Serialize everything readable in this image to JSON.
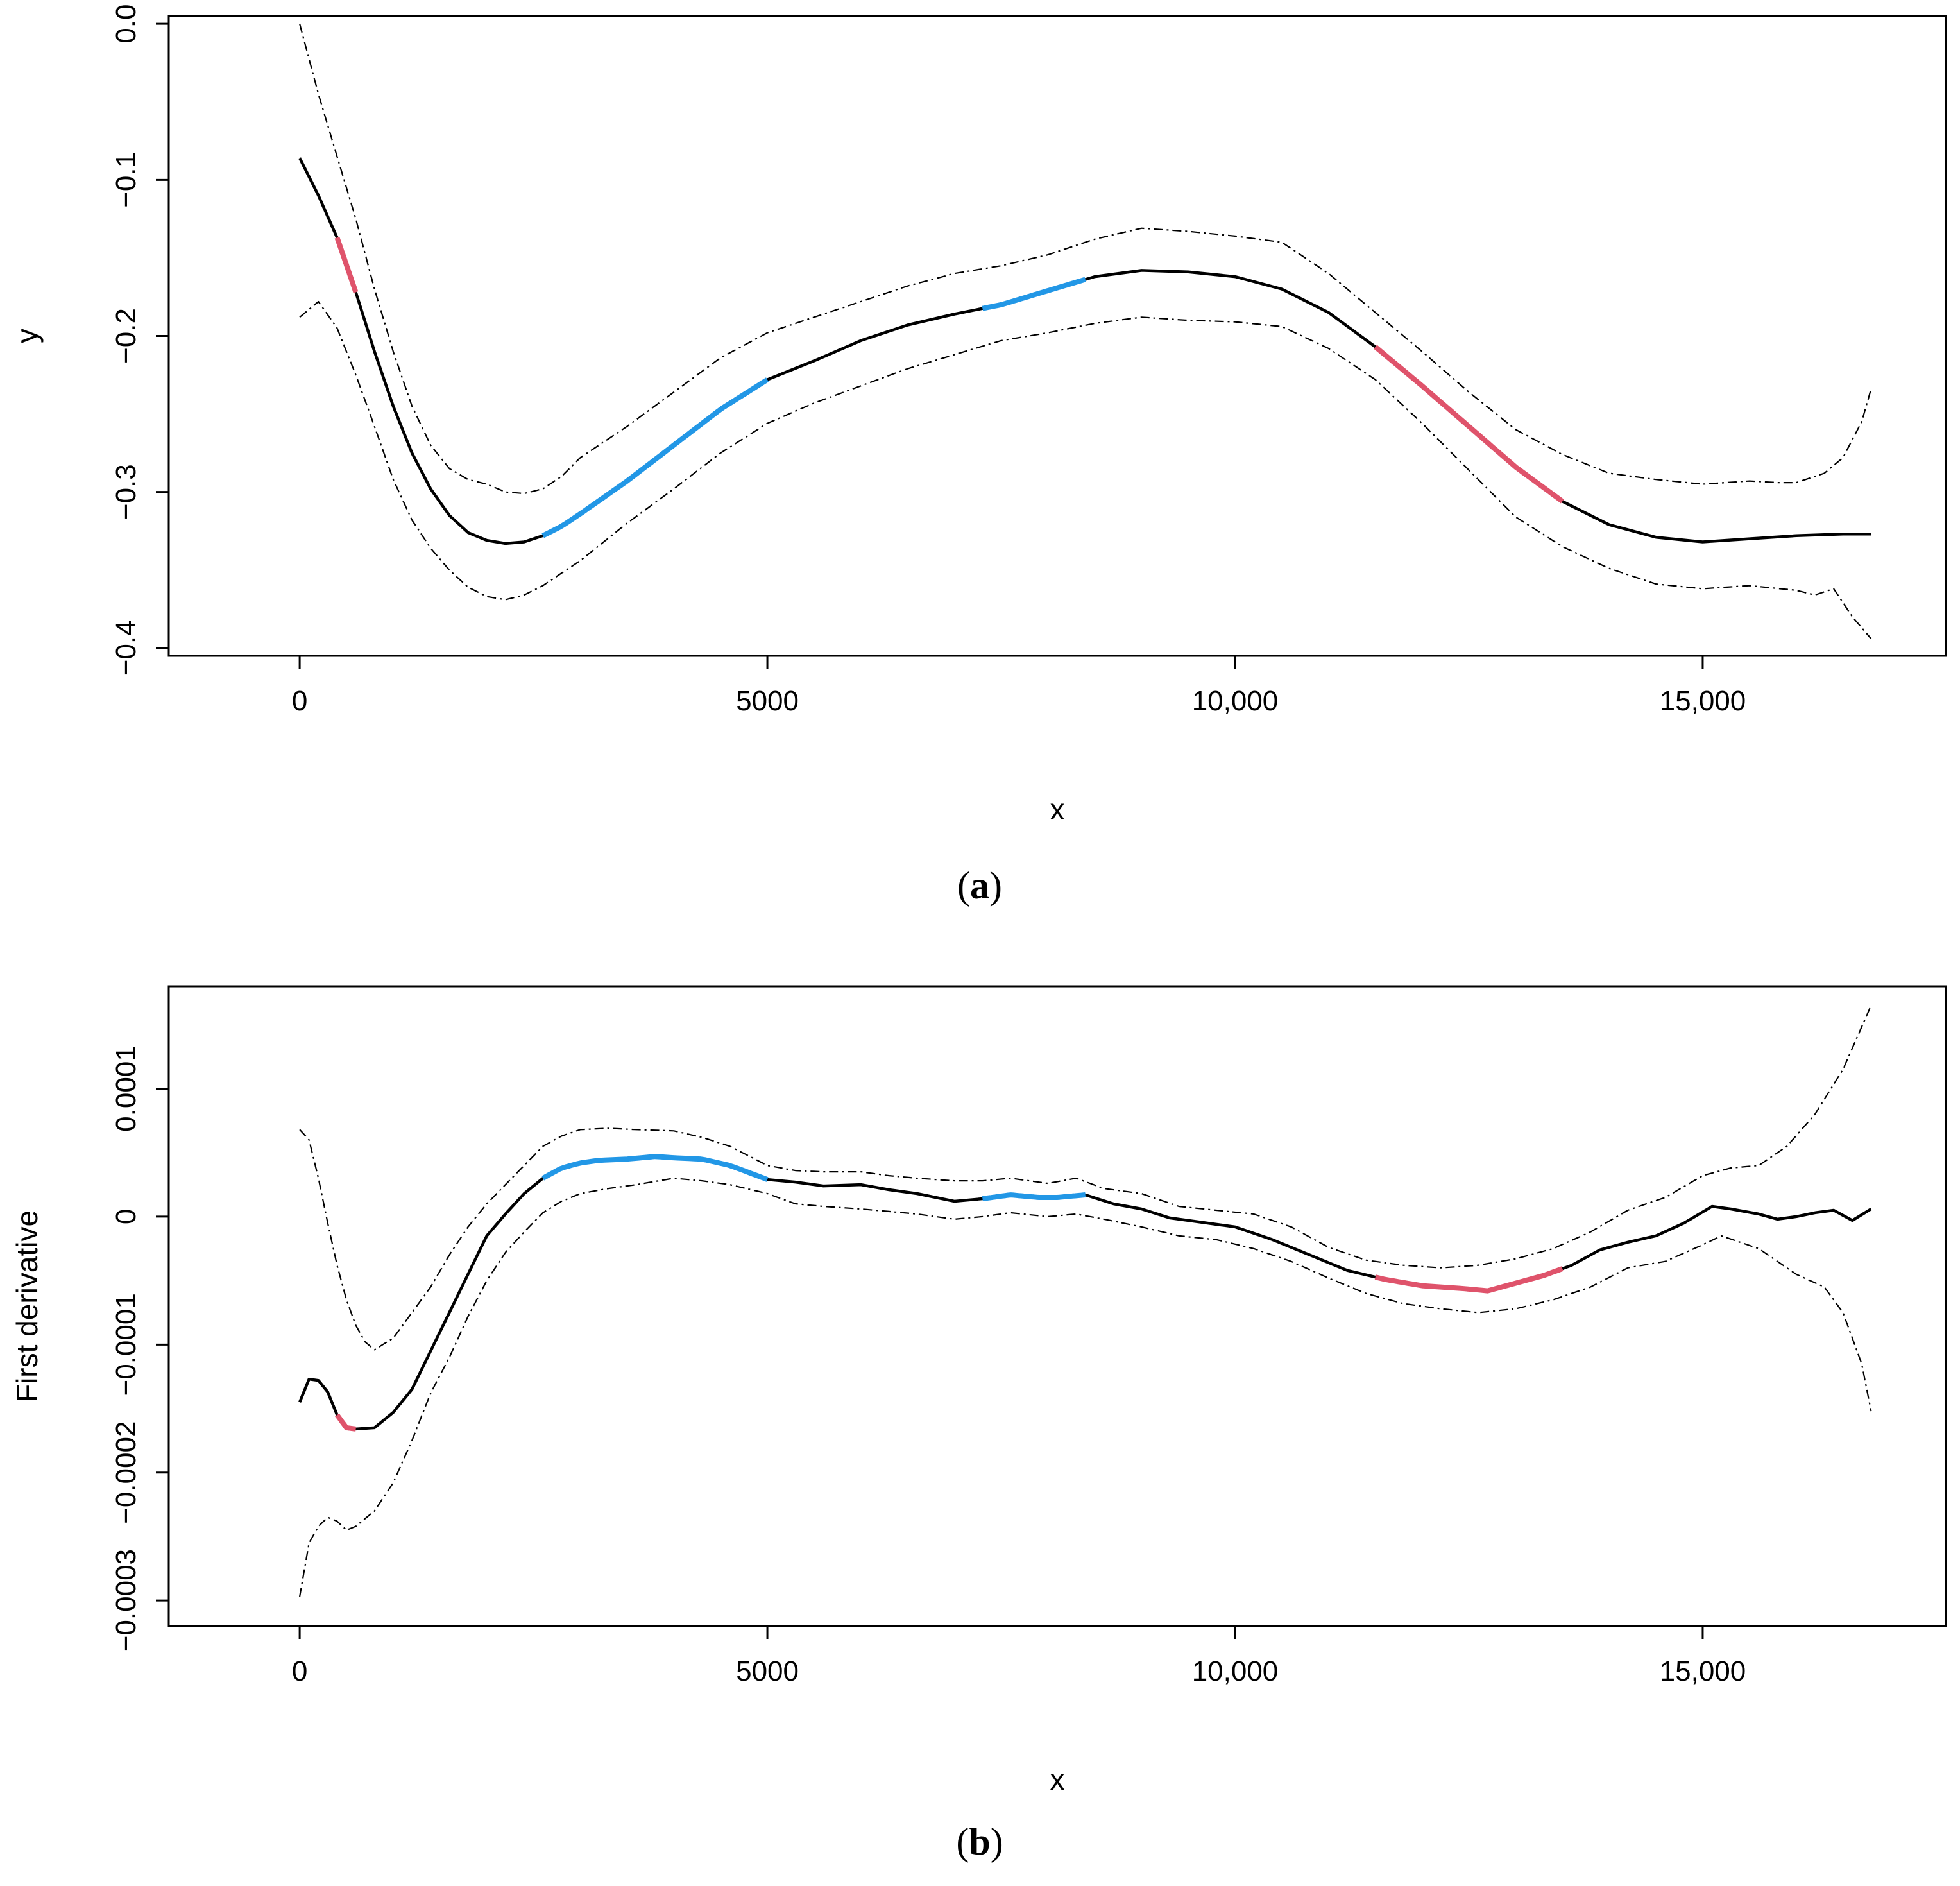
{
  "chart_data": [
    {
      "type": "line",
      "caption_letter": "a",
      "xlabel": "x",
      "ylabel": "y",
      "xlim": [
        -1400,
        17600
      ],
      "ylim": [
        -0.405,
        0.005
      ],
      "xticks": [
        0,
        5000,
        10000,
        15000
      ],
      "xtick_labels": [
        "0",
        "5000",
        "10,000",
        "15,000"
      ],
      "yticks": [
        0.0,
        -0.1,
        -0.2,
        -0.3,
        -0.4
      ],
      "ytick_labels": [
        "0.0",
        "−0.1",
        "−0.2",
        "−0.3",
        "−0.4"
      ],
      "colors": {
        "estimate": "#000000",
        "bands": "#000000",
        "decreasing": "#DF536B",
        "increasing": "#2297E6"
      },
      "series": [
        {
          "name": "estimate",
          "style": "solid",
          "x": [
            0,
            200,
            400,
            600,
            800,
            1000,
            1200,
            1400,
            1600,
            1800,
            2000,
            2200,
            2400,
            2600,
            2800,
            3000,
            3500,
            4000,
            4500,
            5000,
            5500,
            6000,
            6500,
            7000,
            7500,
            8000,
            8500,
            9000,
            9500,
            10000,
            10500,
            11000,
            11500,
            12000,
            12500,
            13000,
            13500,
            14000,
            14500,
            15000,
            15500,
            16000,
            16500,
            16800
          ],
          "y": [
            -0.086,
            -0.11,
            -0.137,
            -0.172,
            -0.21,
            -0.245,
            -0.275,
            -0.298,
            -0.315,
            -0.326,
            -0.331,
            -0.333,
            -0.332,
            -0.328,
            -0.322,
            -0.314,
            -0.293,
            -0.27,
            -0.247,
            -0.228,
            -0.216,
            -0.203,
            -0.193,
            -0.186,
            -0.18,
            -0.171,
            -0.162,
            -0.158,
            -0.159,
            -0.162,
            -0.17,
            -0.185,
            -0.207,
            -0.232,
            -0.258,
            -0.284,
            -0.306,
            -0.321,
            -0.329,
            -0.332,
            -0.33,
            -0.328,
            -0.327,
            -0.327
          ]
        },
        {
          "name": "upper band",
          "style": "dashdot",
          "x": [
            0,
            200,
            400,
            600,
            800,
            1000,
            1200,
            1400,
            1600,
            1800,
            2000,
            2200,
            2400,
            2600,
            2800,
            3000,
            3500,
            4000,
            4500,
            5000,
            5500,
            6000,
            6500,
            7000,
            7500,
            8000,
            8500,
            9000,
            9500,
            10000,
            10500,
            11000,
            11500,
            12000,
            12500,
            13000,
            13500,
            14000,
            14500,
            15000,
            15500,
            15800,
            16000,
            16300,
            16500,
            16700,
            16800
          ],
          "y": [
            0.0,
            -0.045,
            -0.085,
            -0.125,
            -0.17,
            -0.21,
            -0.245,
            -0.27,
            -0.285,
            -0.292,
            -0.295,
            -0.3,
            -0.301,
            -0.298,
            -0.29,
            -0.278,
            -0.258,
            -0.236,
            -0.214,
            -0.198,
            -0.188,
            -0.178,
            -0.168,
            -0.16,
            -0.155,
            -0.148,
            -0.138,
            -0.131,
            -0.133,
            -0.136,
            -0.14,
            -0.16,
            -0.185,
            -0.21,
            -0.236,
            -0.26,
            -0.276,
            -0.288,
            -0.292,
            -0.295,
            -0.293,
            -0.294,
            -0.294,
            -0.288,
            -0.278,
            -0.255,
            -0.234
          ]
        },
        {
          "name": "lower band",
          "style": "dashdot",
          "x": [
            0,
            200,
            400,
            600,
            800,
            1000,
            1200,
            1400,
            1600,
            1800,
            2000,
            2200,
            2400,
            2600,
            2800,
            3000,
            3500,
            4000,
            4500,
            5000,
            5500,
            6000,
            6500,
            7000,
            7500,
            8000,
            8500,
            9000,
            9500,
            10000,
            10500,
            11000,
            11500,
            12000,
            12500,
            13000,
            13500,
            14000,
            14500,
            15000,
            15500,
            16000,
            16200,
            16400,
            16600,
            16800
          ],
          "y": [
            -0.188,
            -0.178,
            -0.195,
            -0.225,
            -0.258,
            -0.292,
            -0.318,
            -0.336,
            -0.35,
            -0.361,
            -0.367,
            -0.369,
            -0.366,
            -0.36,
            -0.352,
            -0.344,
            -0.32,
            -0.298,
            -0.275,
            -0.256,
            -0.243,
            -0.232,
            -0.221,
            -0.212,
            -0.203,
            -0.198,
            -0.192,
            -0.188,
            -0.19,
            -0.191,
            -0.194,
            -0.208,
            -0.228,
            -0.256,
            -0.286,
            -0.316,
            -0.335,
            -0.349,
            -0.359,
            -0.362,
            -0.36,
            -0.363,
            -0.366,
            -0.362,
            -0.38,
            -0.394
          ]
        }
      ],
      "highlight_segments": [
        {
          "trend": "decreasing",
          "x_start": 400,
          "x_end": 600
        },
        {
          "trend": "increasing",
          "x_start": 2600,
          "x_end": 5000
        },
        {
          "trend": "increasing",
          "x_start": 7300,
          "x_end": 8400
        },
        {
          "trend": "decreasing",
          "x_start": 11500,
          "x_end": 13500
        }
      ]
    },
    {
      "type": "line",
      "caption_letter": "b",
      "xlabel": "x",
      "ylabel": "First derivative",
      "xlim": [
        -1400,
        17600
      ],
      "ylim": [
        -0.00032,
        0.00018
      ],
      "xticks": [
        0,
        5000,
        10000,
        15000
      ],
      "xtick_labels": [
        "0",
        "5000",
        "10,000",
        "15,000"
      ],
      "yticks": [
        0.0001,
        0.0,
        -0.0001,
        -0.0002,
        -0.0003
      ],
      "ytick_labels": [
        "0.0001",
        "0",
        "−0.0001",
        "−0.0002",
        "−0.0003"
      ],
      "colors": {
        "estimate": "#000000",
        "bands": "#000000",
        "decreasing": "#DF536B",
        "increasing": "#2297E6"
      },
      "series": [
        {
          "name": "estimate",
          "style": "solid",
          "x": [
            0,
            100,
            200,
            300,
            400,
            500,
            600,
            800,
            1000,
            1200,
            1400,
            1600,
            1800,
            2000,
            2200,
            2400,
            2600,
            2800,
            3000,
            3200,
            3500,
            3800,
            4000,
            4300,
            4600,
            5000,
            5300,
            5600,
            6000,
            6300,
            6600,
            7000,
            7300,
            7600,
            7900,
            8100,
            8400,
            8700,
            9000,
            9300,
            9600,
            10000,
            10400,
            10800,
            11200,
            11600,
            12000,
            12400,
            12700,
            13000,
            13300,
            13600,
            13900,
            14200,
            14500,
            14800,
            15100,
            15300,
            15600,
            15800,
            16000,
            16200,
            16400,
            16600,
            16800
          ],
          "y": [
            -0.000145,
            -0.000127,
            -0.000128,
            -0.000137,
            -0.000155,
            -0.000165,
            -0.000166,
            -0.000165,
            -0.000153,
            -0.000135,
            -0.000105,
            -7.5e-05,
            -4.5e-05,
            -1.5e-05,
            2e-06,
            1.8e-05,
            3e-05,
            3.8e-05,
            4.2e-05,
            4.4e-05,
            4.5e-05,
            4.7e-05,
            4.6e-05,
            4.5e-05,
            4e-05,
            2.9e-05,
            2.7e-05,
            2.4e-05,
            2.5e-05,
            2.1e-05,
            1.8e-05,
            1.2e-05,
            1.4e-05,
            1.7e-05,
            1.5e-05,
            1.5e-05,
            1.7e-05,
            1e-05,
            6e-06,
            -1e-06,
            -4e-06,
            -8e-06,
            -1.8e-05,
            -3e-05,
            -4.2e-05,
            -4.9e-05,
            -5.4e-05,
            -5.6e-05,
            -5.8e-05,
            -5.2e-05,
            -4.6e-05,
            -3.8e-05,
            -2.6e-05,
            -2e-05,
            -1.5e-05,
            -5e-06,
            8e-06,
            6e-06,
            2e-06,
            -2e-06,
            0.0,
            3e-06,
            5e-06,
            -3e-06,
            6e-06
          ]
        },
        {
          "name": "upper band",
          "style": "dashdot",
          "x": [
            0,
            100,
            200,
            300,
            400,
            500,
            600,
            700,
            800,
            1000,
            1200,
            1400,
            1600,
            1800,
            2000,
            2200,
            2400,
            2600,
            2800,
            3000,
            3300,
            3600,
            4000,
            4300,
            4600,
            5000,
            5300,
            5600,
            6000,
            6300,
            6600,
            7000,
            7300,
            7600,
            8000,
            8300,
            8600,
            9000,
            9400,
            9800,
            10200,
            10600,
            11000,
            11400,
            11800,
            12200,
            12600,
            13000,
            13400,
            13800,
            14200,
            14600,
            15000,
            15300,
            15600,
            15900,
            16200,
            16500,
            16800
          ],
          "y": [
            6.8e-05,
            6e-05,
            3e-05,
            -5e-06,
            -3.8e-05,
            -6.5e-05,
            -8.5e-05,
            -9.8e-05,
            -0.000104,
            -9.5e-05,
            -7.5e-05,
            -5.5e-05,
            -3e-05,
            -8e-06,
            1e-05,
            2.5e-05,
            4e-05,
            5.5e-05,
            6.3e-05,
            6.8e-05,
            6.9e-05,
            6.8e-05,
            6.7e-05,
            6.2e-05,
            5.5e-05,
            4e-05,
            3.6e-05,
            3.5e-05,
            3.5e-05,
            3.2e-05,
            3e-05,
            2.8e-05,
            2.8e-05,
            3e-05,
            2.6e-05,
            3e-05,
            2.2e-05,
            1.8e-05,
            8e-06,
            5e-06,
            2e-06,
            -8e-06,
            -2.4e-05,
            -3.4e-05,
            -3.8e-05,
            -4e-05,
            -3.8e-05,
            -3.3e-05,
            -2.5e-05,
            -1.2e-05,
            5e-06,
            1.5e-05,
            3.2e-05,
            3.8e-05,
            4e-05,
            5.5e-05,
            8e-05,
            0.000115,
            0.000165
          ]
        },
        {
          "name": "lower band",
          "style": "dashdot",
          "x": [
            0,
            100,
            200,
            300,
            400,
            500,
            600,
            800,
            1000,
            1200,
            1400,
            1600,
            1800,
            2000,
            2200,
            2400,
            2600,
            2800,
            3000,
            3300,
            3600,
            4000,
            4300,
            4600,
            5000,
            5300,
            5600,
            6000,
            6300,
            6600,
            7000,
            7300,
            7600,
            8000,
            8300,
            8600,
            9000,
            9400,
            9800,
            10200,
            10600,
            11000,
            11400,
            11800,
            12200,
            12600,
            13000,
            13400,
            13800,
            14200,
            14600,
            15000,
            15200,
            15600,
            16000,
            16300,
            16500,
            16700,
            16800
          ],
          "y": [
            -0.000297,
            -0.000255,
            -0.000242,
            -0.000235,
            -0.000238,
            -0.000245,
            -0.000242,
            -0.00023,
            -0.000208,
            -0.000175,
            -0.000138,
            -0.00011,
            -7.8e-05,
            -5e-05,
            -2.8e-05,
            -1.2e-05,
            3e-06,
            1.2e-05,
            1.8e-05,
            2.2e-05,
            2.5e-05,
            3e-05,
            2.8e-05,
            2.5e-05,
            1.8e-05,
            1e-05,
            8e-06,
            6e-06,
            4e-06,
            2e-06,
            -2e-06,
            0.0,
            3e-06,
            0.0,
            2e-06,
            -2e-06,
            -8e-06,
            -1.5e-05,
            -1.8e-05,
            -2.5e-05,
            -3.5e-05,
            -4.8e-05,
            -6e-05,
            -6.8e-05,
            -7.2e-05,
            -7.5e-05,
            -7.2e-05,
            -6.5e-05,
            -5.5e-05,
            -4e-05,
            -3.5e-05,
            -2.2e-05,
            -1.5e-05,
            -2.5e-05,
            -4.5e-05,
            -5.5e-05,
            -7.5e-05,
            -0.000115,
            -0.000152
          ]
        }
      ],
      "highlight_segments": [
        {
          "trend": "decreasing",
          "x_start": 400,
          "x_end": 600
        },
        {
          "trend": "increasing",
          "x_start": 2600,
          "x_end": 5000
        },
        {
          "trend": "increasing",
          "x_start": 7300,
          "x_end": 8400
        },
        {
          "trend": "decreasing",
          "x_start": 11500,
          "x_end": 13500
        }
      ]
    }
  ]
}
